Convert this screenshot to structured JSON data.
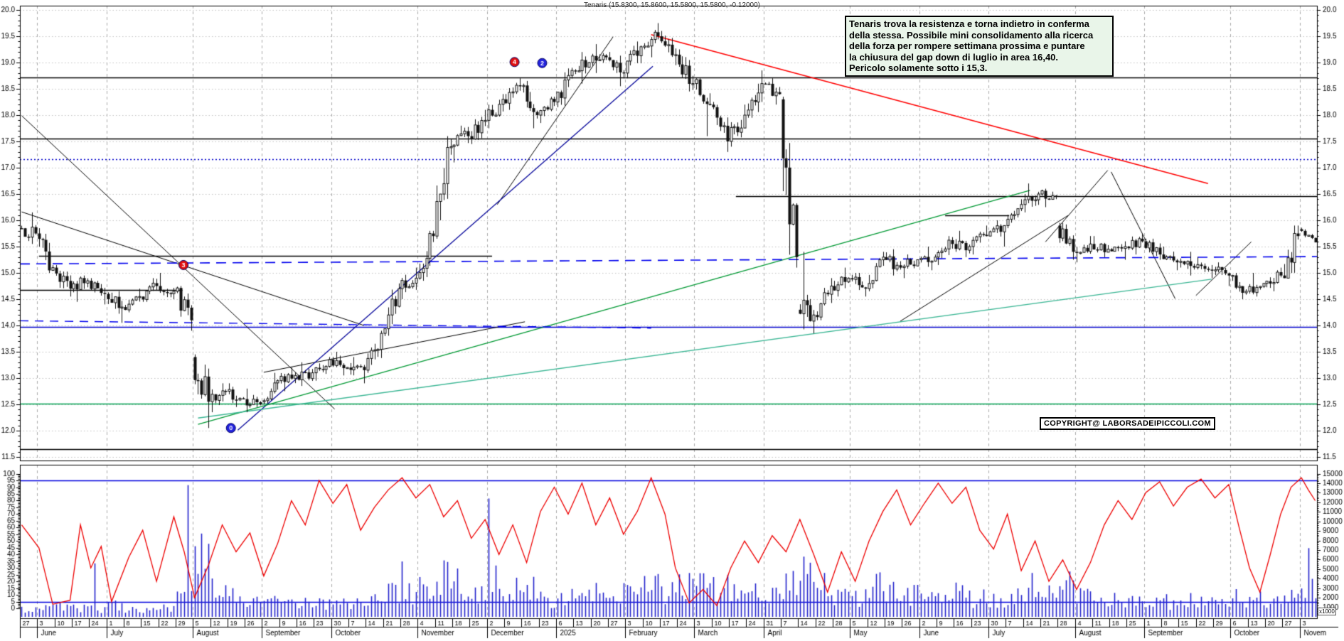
{
  "title": "Tenaris (15.8300, 15.8600, 15.5800, 15.5800, -0.12000)",
  "annotation": {
    "lines": [
      "Tenaris trova la resistenza e torna indietro in conferma",
      "della stessa. Possibile mini consolidamento alla ricerca",
      "della forza per rompere settimana prossima e puntare",
      "la chiusura del gap down di luglio in area 16,40.",
      "Pericolo solamente sotto i 15,3."
    ]
  },
  "copyright": "COPYRIGHT@ LABORSADEIPICCOLI.COM",
  "colors": {
    "up_candle": "#ffffff",
    "down_candle": "#111111",
    "candle_stroke": "#111111",
    "volume": "#2222cc",
    "oscillator": "#ee0000",
    "grid_h": "#c3c3c3",
    "grid_v": "#aaaaaa",
    "annotation_bg": "#e9f5e9"
  },
  "chart_data": {
    "type": "candlestick",
    "timeframe": "daily",
    "instrument": "Tenaris",
    "last_quote": {
      "open": 15.83,
      "high": 15.86,
      "low": 15.58,
      "close": 15.58,
      "change": -0.12
    },
    "price_axis": {
      "min": 11.5,
      "max": 20.0,
      "label_step": 0.5,
      "minor_step": 0.1
    },
    "osc_axis": {
      "min": 0,
      "max": 100,
      "label_step": 5,
      "guides": [
        95,
        5
      ]
    },
    "vol_axis": {
      "min": 0,
      "max": 15000,
      "label_step": 1000,
      "unit": "x1000"
    },
    "x_axis": {
      "week_labels": [
        "27",
        "3",
        "10",
        "17",
        "24",
        "1",
        "8",
        "15",
        "22",
        "29",
        "5",
        "12",
        "19",
        "26",
        "2",
        "9",
        "16",
        "23",
        "30",
        "7",
        "14",
        "21",
        "28",
        "4",
        "11",
        "18",
        "25",
        "2",
        "9",
        "16",
        "23",
        "6",
        "13",
        "20",
        "27",
        "3",
        "10",
        "17",
        "24",
        "3",
        "10",
        "17",
        "24",
        "31",
        "7",
        "14",
        "22",
        "28",
        "5",
        "12",
        "19",
        "26",
        "2",
        "9",
        "16",
        "23",
        "30",
        "7",
        "14",
        "21",
        "28",
        "4",
        "11",
        "18",
        "25",
        "1",
        "8",
        "15",
        "22",
        "29",
        "6",
        "13",
        "20",
        "27",
        "3"
      ],
      "months": [
        {
          "label": "",
          "weeks": 1
        },
        {
          "label": "June",
          "weeks": 4
        },
        {
          "label": "July",
          "weeks": 5
        },
        {
          "label": "August",
          "weeks": 4
        },
        {
          "label": "September",
          "weeks": 4
        },
        {
          "label": "October",
          "weeks": 5
        },
        {
          "label": "November",
          "weeks": 4
        },
        {
          "label": "December",
          "weeks": 4
        },
        {
          "label": "2025",
          "weeks": 4
        },
        {
          "label": "February",
          "weeks": 4
        },
        {
          "label": "March",
          "weeks": 4
        },
        {
          "label": "April",
          "weeks": 5
        },
        {
          "label": "May",
          "weeks": 4
        },
        {
          "label": "June",
          "weeks": 4
        },
        {
          "label": "July",
          "weeks": 5
        },
        {
          "label": "August",
          "weeks": 4
        },
        {
          "label": "September",
          "weeks": 5
        },
        {
          "label": "October",
          "weeks": 4
        },
        {
          "label": "Novem",
          "weeks": 1
        }
      ]
    },
    "weekly_ohlc": [
      [
        15.85,
        16.15,
        15.55,
        15.75
      ],
      [
        15.75,
        15.85,
        15.0,
        15.1
      ],
      [
        15.1,
        15.15,
        14.55,
        14.7
      ],
      [
        14.7,
        14.95,
        14.45,
        14.85
      ],
      [
        14.85,
        14.9,
        14.4,
        14.6
      ],
      [
        14.6,
        14.65,
        14.05,
        14.35
      ],
      [
        14.35,
        14.7,
        14.25,
        14.55
      ],
      [
        14.55,
        14.9,
        14.45,
        14.75
      ],
      [
        14.75,
        15.0,
        14.5,
        14.65
      ],
      [
        14.65,
        14.75,
        13.9,
        14.1
      ],
      [
        13.4,
        13.45,
        12.05,
        12.55
      ],
      [
        12.55,
        12.9,
        12.35,
        12.75
      ],
      [
        12.75,
        12.9,
        12.45,
        12.6
      ],
      [
        12.6,
        12.8,
        12.35,
        12.5
      ],
      [
        12.55,
        13.1,
        12.5,
        12.95
      ],
      [
        12.95,
        13.2,
        12.75,
        13.05
      ],
      [
        13.05,
        13.3,
        12.85,
        13.1
      ],
      [
        13.1,
        13.4,
        12.95,
        13.35
      ],
      [
        13.35,
        13.5,
        13.05,
        13.2
      ],
      [
        13.2,
        13.4,
        12.9,
        13.15
      ],
      [
        13.15,
        13.9,
        13.1,
        13.85
      ],
      [
        13.85,
        14.8,
        13.8,
        14.7
      ],
      [
        14.7,
        15.1,
        14.5,
        14.9
      ],
      [
        14.9,
        15.8,
        14.85,
        15.7
      ],
      [
        15.7,
        17.6,
        15.65,
        17.4
      ],
      [
        17.4,
        17.8,
        17.1,
        17.6
      ],
      [
        17.6,
        18.1,
        17.45,
        17.9
      ],
      [
        17.9,
        18.4,
        17.75,
        18.3
      ],
      [
        18.3,
        18.7,
        18.1,
        18.55
      ],
      [
        18.55,
        18.65,
        17.75,
        18.0
      ],
      [
        18.0,
        18.35,
        17.85,
        18.25
      ],
      [
        18.25,
        18.9,
        18.15,
        18.85
      ],
      [
        18.85,
        19.2,
        18.6,
        19.0
      ],
      [
        19.0,
        19.35,
        18.8,
        19.1
      ],
      [
        19.1,
        19.2,
        18.55,
        18.8
      ],
      [
        18.8,
        19.4,
        18.7,
        19.3
      ],
      [
        19.3,
        19.75,
        19.1,
        19.5
      ],
      [
        19.5,
        19.6,
        18.95,
        19.15
      ],
      [
        19.15,
        19.25,
        18.45,
        18.6
      ],
      [
        18.6,
        18.7,
        17.6,
        18.2
      ],
      [
        18.2,
        18.25,
        17.3,
        17.5
      ],
      [
        17.5,
        18.2,
        17.4,
        18.0
      ],
      [
        18.0,
        18.85,
        17.95,
        18.6
      ],
      [
        18.6,
        18.7,
        18.2,
        18.4
      ],
      [
        18.3,
        18.35,
        15.1,
        15.3
      ],
      [
        14.3,
        15.4,
        13.85,
        14.2
      ],
      [
        14.2,
        14.9,
        14.1,
        14.75
      ],
      [
        14.75,
        15.1,
        14.55,
        14.9
      ],
      [
        14.9,
        15.0,
        14.55,
        14.7
      ],
      [
        14.7,
        15.4,
        14.65,
        15.3
      ],
      [
        15.3,
        15.45,
        14.95,
        15.1
      ],
      [
        15.1,
        15.35,
        14.9,
        15.25
      ],
      [
        15.25,
        15.5,
        15.05,
        15.3
      ],
      [
        15.3,
        15.7,
        15.15,
        15.55
      ],
      [
        15.55,
        15.8,
        15.3,
        15.5
      ],
      [
        15.5,
        15.9,
        15.35,
        15.7
      ],
      [
        15.7,
        16.0,
        15.5,
        15.9
      ],
      [
        15.9,
        16.4,
        15.85,
        16.3
      ],
      [
        16.3,
        16.7,
        16.15,
        16.5
      ],
      [
        16.5,
        16.6,
        16.25,
        16.45
      ],
      [
        15.9,
        15.95,
        15.25,
        15.4
      ],
      [
        15.4,
        15.7,
        15.2,
        15.55
      ],
      [
        15.55,
        15.7,
        15.3,
        15.45
      ],
      [
        15.45,
        15.6,
        15.25,
        15.5
      ],
      [
        15.5,
        15.75,
        15.35,
        15.6
      ],
      [
        15.6,
        15.65,
        15.25,
        15.35
      ],
      [
        15.35,
        15.5,
        15.05,
        15.2
      ],
      [
        15.2,
        15.4,
        14.95,
        15.1
      ],
      [
        15.1,
        15.3,
        14.9,
        15.05
      ],
      [
        15.05,
        15.2,
        14.75,
        14.95
      ],
      [
        14.95,
        15.0,
        14.5,
        14.65
      ],
      [
        14.65,
        15.0,
        14.55,
        14.8
      ],
      [
        14.8,
        15.1,
        14.65,
        14.95
      ],
      [
        14.95,
        15.9,
        14.9,
        15.7
      ],
      [
        15.83,
        15.86,
        15.58,
        15.58
      ]
    ],
    "levels": [
      {
        "price": 18.72,
        "color": "#000000",
        "style": "solid",
        "w0": 0,
        "w1": 75
      },
      {
        "price": 17.56,
        "color": "#000000",
        "style": "solid",
        "w0": 0,
        "w1": 75
      },
      {
        "price": 17.16,
        "color": "#0000cc",
        "style": "dotted",
        "w0": 0,
        "w1": 75
      },
      {
        "price": 16.46,
        "color": "#000000",
        "style": "solid",
        "w0": 41.4,
        "w1": 75
      },
      {
        "price": 16.09,
        "color": "#000000",
        "style": "solid",
        "w0": 53.5,
        "w1": 57.2
      },
      {
        "price": 15.33,
        "color": "#000000",
        "style": "solid",
        "w0": 1.1,
        "w1": 27.3
      },
      {
        "price": 14.68,
        "color": "#000000",
        "style": "solid",
        "w0": 0,
        "w1": 9.4
      },
      {
        "price": 13.97,
        "color": "#0000cc",
        "style": "solid",
        "w0": 0,
        "w1": 75
      },
      {
        "price": 12.52,
        "color": "#00a050",
        "style": "solid",
        "w0": 0,
        "w1": 75
      },
      {
        "price": 11.65,
        "color": "#000000",
        "style": "solid",
        "w0": 0,
        "w1": 75
      }
    ],
    "trendlines": [
      {
        "w0": 0.1,
        "p0": 17.99,
        "w1": 18.2,
        "p1": 12.41,
        "color": "#000000",
        "lw": 1
      },
      {
        "w0": 0.1,
        "p0": 16.16,
        "w1": 19.9,
        "p1": 14.0,
        "color": "#000000",
        "lw": 1
      },
      {
        "w0": 14.1,
        "p0": 13.11,
        "w1": 29.2,
        "p1": 14.07,
        "color": "#000000",
        "lw": 1
      },
      {
        "w0": 27.6,
        "p0": 16.3,
        "w1": 34.3,
        "p1": 19.49,
        "color": "#000000",
        "lw": 1
      },
      {
        "w0": 50.9,
        "p0": 14.08,
        "w1": 60.6,
        "p1": 16.09,
        "color": "#000000",
        "lw": 1
      },
      {
        "w0": 59.3,
        "p0": 15.59,
        "w1": 62.9,
        "p1": 16.95,
        "color": "#000000",
        "lw": 1
      },
      {
        "w0": 63.1,
        "p0": 16.92,
        "w1": 66.8,
        "p1": 14.51,
        "color": "#000000",
        "lw": 1
      },
      {
        "w0": 68.0,
        "p0": 14.57,
        "w1": 71.2,
        "p1": 15.59,
        "color": "#000000",
        "lw": 1
      },
      {
        "w0": 12.6,
        "p0": 12.01,
        "w1": 36.6,
        "p1": 18.93,
        "color": "#000099",
        "lw": 1.2
      },
      {
        "w0": 36.5,
        "p0": 19.53,
        "w1": 68.7,
        "p1": 16.7,
        "color": "#ff0000",
        "lw": 1.6
      },
      {
        "w0": 10.3,
        "p0": 12.12,
        "w1": 58.4,
        "p1": 16.57,
        "color": "#009933",
        "lw": 1.3
      },
      {
        "w0": 10.3,
        "p0": 12.24,
        "w1": 68.9,
        "p1": 14.88,
        "color": "#3cb795",
        "lw": 1.3
      },
      {
        "w0": 0,
        "p0": 15.17,
        "w1": 75,
        "p1": 15.31,
        "color": "#0000ee",
        "lw": 1.6,
        "dash": [
          14,
          9
        ]
      },
      {
        "w0": 0,
        "p0": 14.09,
        "w1": 36.5,
        "p1": 13.95,
        "color": "#0000ee",
        "lw": 1.4,
        "dash": [
          12,
          9
        ]
      }
    ],
    "markers": [
      {
        "label": "3",
        "color": "#e01010",
        "week": 9.46,
        "price": 15.15
      },
      {
        "label": "0",
        "color": "#2222dd",
        "week": 12.2,
        "price": 12.05
      },
      {
        "label": "4",
        "color": "#e01010",
        "week": 28.6,
        "price": 19.01
      },
      {
        "label": "2",
        "color": "#2222dd",
        "week": 30.2,
        "price": 18.99
      }
    ],
    "oscillator_points": [
      [
        0,
        62
      ],
      [
        5,
        45
      ],
      [
        9,
        3
      ],
      [
        14,
        6
      ],
      [
        17,
        62
      ],
      [
        20,
        30
      ],
      [
        23,
        46
      ],
      [
        26,
        5
      ],
      [
        31,
        38
      ],
      [
        35,
        58
      ],
      [
        39,
        20
      ],
      [
        44,
        68
      ],
      [
        47,
        42
      ],
      [
        50,
        8
      ],
      [
        54,
        32
      ],
      [
        58,
        62
      ],
      [
        62,
        42
      ],
      [
        66,
        56
      ],
      [
        70,
        24
      ],
      [
        74,
        48
      ],
      [
        78,
        80
      ],
      [
        82,
        62
      ],
      [
        86,
        95
      ],
      [
        90,
        78
      ],
      [
        94,
        92
      ],
      [
        98,
        58
      ],
      [
        102,
        75
      ],
      [
        106,
        88
      ],
      [
        110,
        97
      ],
      [
        114,
        82
      ],
      [
        118,
        92
      ],
      [
        122,
        68
      ],
      [
        126,
        80
      ],
      [
        130,
        52
      ],
      [
        134,
        66
      ],
      [
        138,
        40
      ],
      [
        142,
        62
      ],
      [
        146,
        34
      ],
      [
        150,
        72
      ],
      [
        154,
        90
      ],
      [
        158,
        70
      ],
      [
        162,
        93
      ],
      [
        166,
        62
      ],
      [
        170,
        82
      ],
      [
        174,
        55
      ],
      [
        178,
        72
      ],
      [
        182,
        97
      ],
      [
        186,
        70
      ],
      [
        189,
        30
      ],
      [
        193,
        4
      ],
      [
        197,
        14
      ],
      [
        201,
        2
      ],
      [
        205,
        30
      ],
      [
        209,
        50
      ],
      [
        213,
        34
      ],
      [
        217,
        54
      ],
      [
        221,
        42
      ],
      [
        225,
        66
      ],
      [
        229,
        40
      ],
      [
        233,
        12
      ],
      [
        237,
        42
      ],
      [
        241,
        20
      ],
      [
        245,
        50
      ],
      [
        249,
        72
      ],
      [
        253,
        88
      ],
      [
        257,
        62
      ],
      [
        261,
        78
      ],
      [
        265,
        93
      ],
      [
        269,
        78
      ],
      [
        273,
        90
      ],
      [
        277,
        58
      ],
      [
        281,
        44
      ],
      [
        285,
        70
      ],
      [
        289,
        28
      ],
      [
        293,
        50
      ],
      [
        297,
        20
      ],
      [
        301,
        36
      ],
      [
        305,
        14
      ],
      [
        309,
        34
      ],
      [
        313,
        62
      ],
      [
        317,
        80
      ],
      [
        321,
        66
      ],
      [
        325,
        86
      ],
      [
        329,
        94
      ],
      [
        333,
        76
      ],
      [
        337,
        90
      ],
      [
        341,
        96
      ],
      [
        345,
        82
      ],
      [
        349,
        92
      ],
      [
        352,
        60
      ],
      [
        355,
        30
      ],
      [
        358,
        12
      ],
      [
        361,
        40
      ],
      [
        364,
        70
      ],
      [
        367,
        90
      ],
      [
        370,
        97
      ],
      [
        372,
        88
      ],
      [
        374,
        80
      ]
    ],
    "volume_week_base": [
      900,
      1000,
      1100,
      900,
      800,
      1400,
      900,
      800,
      900,
      1800,
      6500,
      3000,
      2200,
      1800,
      1500,
      1400,
      1600,
      1500,
      1400,
      1500,
      1800,
      2600,
      2400,
      3600,
      4600,
      3400,
      2800,
      3800,
      2800,
      3200,
      2000,
      2600,
      2800,
      2400,
      2600,
      3400,
      3000,
      2800,
      3200,
      3600,
      3000,
      2400,
      2600,
      2200,
      4000,
      4400,
      2800,
      2400,
      2200,
      3600,
      2600,
      2400,
      2000,
      2200,
      2400,
      2000,
      1800,
      2600,
      3000,
      2400,
      3600,
      2400,
      2000,
      1800,
      1600,
      1800,
      1600,
      1800,
      1500,
      1400,
      2000,
      1800,
      1600,
      2600,
      4200
    ],
    "volume_spikes": [
      [
        21,
        5600
      ],
      [
        48,
        13800
      ],
      [
        50,
        7400
      ],
      [
        110,
        5800
      ],
      [
        135,
        12400
      ],
      [
        232,
        4600
      ],
      [
        247,
        4500
      ],
      [
        292,
        4600
      ],
      [
        372,
        7200
      ]
    ]
  }
}
